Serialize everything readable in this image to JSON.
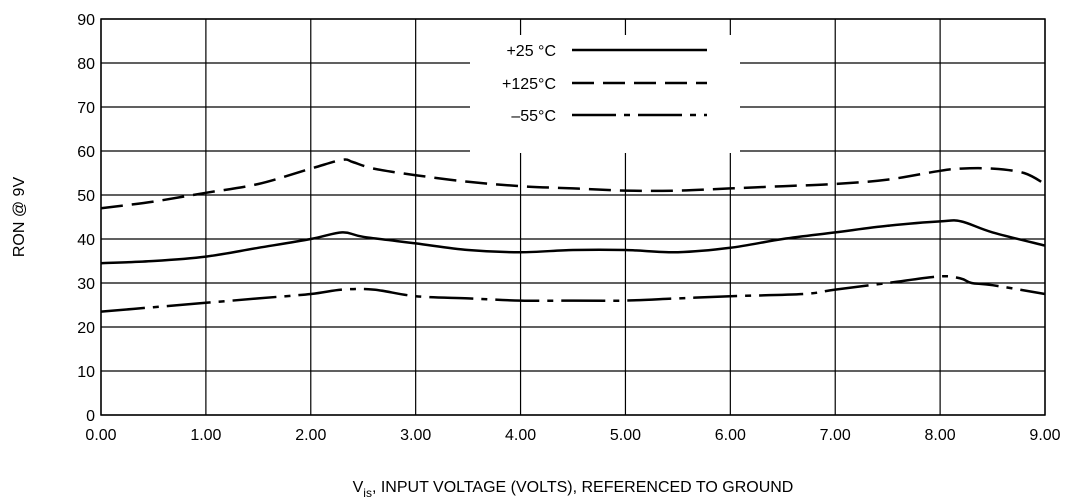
{
  "chart_data": {
    "type": "line",
    "title": "",
    "xlabel_main": "V",
    "xlabel_sub": "is",
    "xlabel_rest": ", INPUT VOLTAGE (VOLTS), REFERENCED TO GROUND",
    "ylabel": "RON @ 9V",
    "xlim": [
      0,
      9
    ],
    "ylim": [
      0,
      90
    ],
    "x_ticks": [
      "0.00",
      "1.00",
      "2.00",
      "3.00",
      "4.00",
      "5.00",
      "6.00",
      "7.00",
      "8.00",
      "9.00"
    ],
    "y_ticks": [
      "0",
      "10",
      "20",
      "30",
      "40",
      "50",
      "60",
      "70",
      "80",
      "90"
    ],
    "grid": true,
    "legend_position": "top-center",
    "series": [
      {
        "name": "+25 °C",
        "style": "solid",
        "x": [
          0.0,
          0.5,
          1.0,
          1.5,
          2.0,
          2.3,
          2.5,
          3.0,
          3.5,
          4.0,
          4.5,
          5.0,
          5.5,
          6.0,
          6.5,
          7.0,
          7.5,
          8.0,
          8.2,
          8.5,
          9.0
        ],
        "y": [
          34.5,
          35.0,
          36.0,
          38.0,
          40.0,
          41.5,
          40.5,
          39.0,
          37.5,
          37.0,
          37.5,
          37.5,
          37.0,
          38.0,
          40.0,
          41.5,
          43.0,
          44.0,
          44.0,
          41.5,
          38.5
        ]
      },
      {
        "name": "+125°C",
        "style": "dashed",
        "x": [
          0.0,
          0.5,
          1.0,
          1.5,
          2.0,
          2.3,
          2.4,
          2.6,
          3.0,
          3.5,
          4.0,
          4.5,
          5.0,
          5.5,
          6.0,
          6.5,
          7.0,
          7.5,
          8.0,
          8.2,
          8.5,
          8.8,
          9.0
        ],
        "y": [
          47.0,
          48.5,
          50.5,
          52.5,
          56.0,
          58.0,
          57.5,
          56.0,
          54.5,
          53.0,
          52.0,
          51.5,
          51.0,
          51.0,
          51.5,
          52.0,
          52.5,
          53.5,
          55.5,
          56.0,
          56.0,
          55.0,
          52.5
        ]
      },
      {
        "name": "–55°C",
        "style": "dashdot",
        "x": [
          0.0,
          0.5,
          1.0,
          1.5,
          2.0,
          2.3,
          2.6,
          3.0,
          3.5,
          4.0,
          4.5,
          5.0,
          5.5,
          6.0,
          6.7,
          7.0,
          7.5,
          8.0,
          8.2,
          8.3,
          8.5,
          9.0
        ],
        "y": [
          23.5,
          24.5,
          25.5,
          26.5,
          27.5,
          28.5,
          28.5,
          27.0,
          26.5,
          26.0,
          26.0,
          26.0,
          26.5,
          27.0,
          27.5,
          28.5,
          30.0,
          31.5,
          31.0,
          30.0,
          29.5,
          27.5
        ]
      }
    ]
  },
  "colors": {
    "line": "#000000",
    "grid": "#000000",
    "background": "#ffffff"
  }
}
